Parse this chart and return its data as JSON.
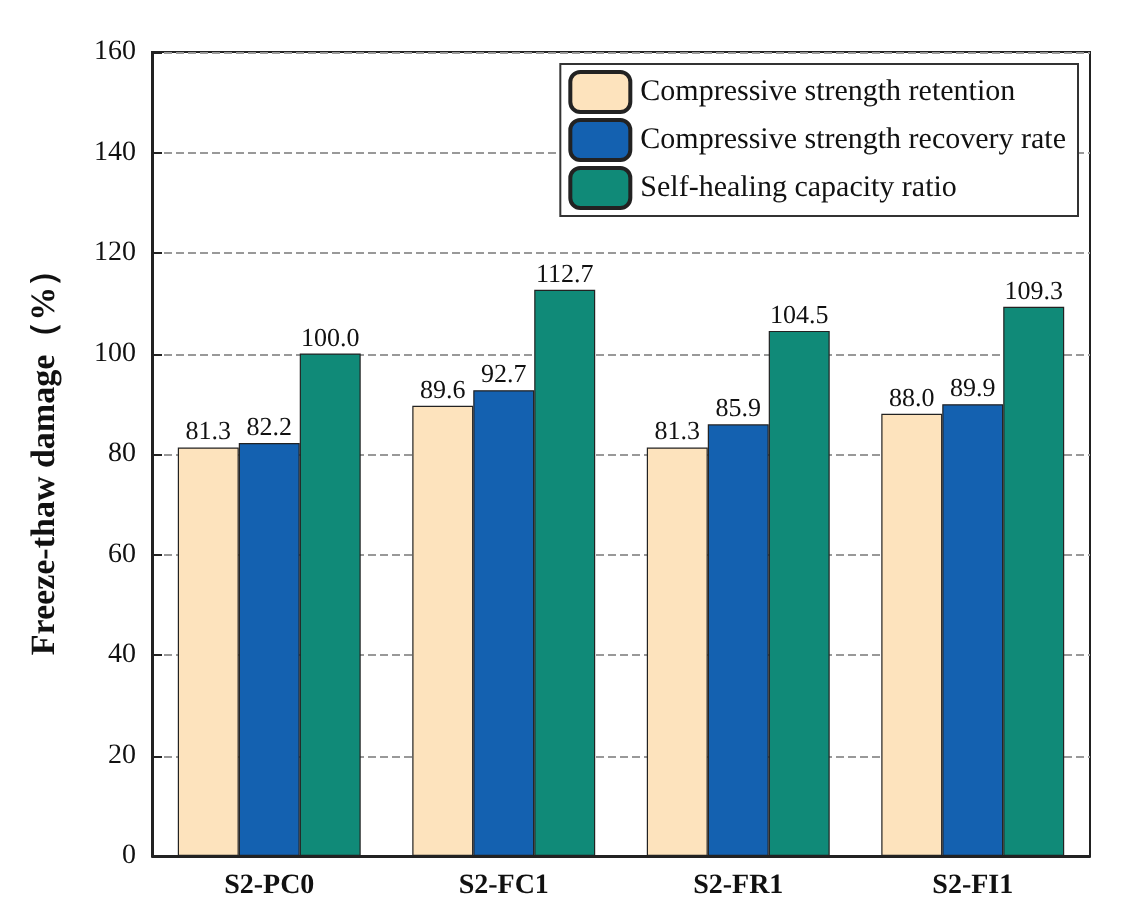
{
  "chart_data": {
    "type": "bar",
    "ylabel": "Freeze-thaw damage（%）",
    "categories": [
      "S2-PC0",
      "S2-FC1",
      "S2-FR1",
      "S2-FI1"
    ],
    "series": [
      {
        "name": "Compressive strength retention",
        "color": "#fde3bd",
        "values": [
          81.3,
          89.6,
          81.3,
          88.0
        ],
        "value_labels": [
          "81.3",
          "89.6",
          "81.3",
          "88.0"
        ]
      },
      {
        "name": "Compressive strength recovery rate",
        "color": "#1461b0",
        "values": [
          82.2,
          92.7,
          85.9,
          89.9
        ],
        "value_labels": [
          "82.2",
          "92.7",
          "85.9",
          "89.9"
        ]
      },
      {
        "name": "Self-healing capacity ratio",
        "color": "#108a78",
        "values": [
          100.0,
          112.7,
          104.5,
          109.3
        ],
        "value_labels": [
          "100.0",
          "112.7",
          "104.5",
          "109.3"
        ]
      }
    ],
    "ylim": [
      0,
      160
    ],
    "yticks": [
      0,
      20,
      40,
      60,
      80,
      100,
      120,
      140,
      160
    ],
    "grid": "y",
    "legend": "top right"
  }
}
